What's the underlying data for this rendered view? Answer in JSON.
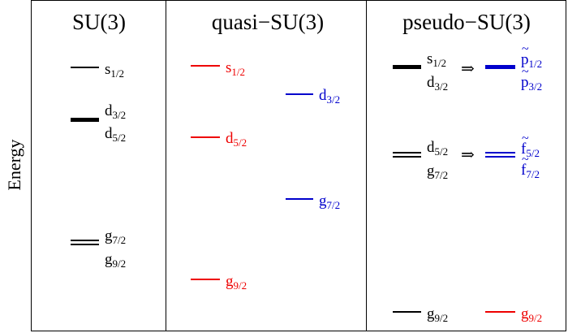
{
  "axis": {
    "ylabel": "Energy"
  },
  "panels": {
    "su3": {
      "title": "SU(3)",
      "s": {
        "base": "s",
        "sub": "1/2"
      },
      "d1": {
        "base": "d",
        "sub": "3/2"
      },
      "d2": {
        "base": "d",
        "sub": "5/2"
      },
      "g1": {
        "base": "g",
        "sub": "7/2"
      },
      "g2": {
        "base": "g",
        "sub": "9/2"
      }
    },
    "quasi": {
      "title": "quasi−SU(3)",
      "s": {
        "base": "s",
        "sub": "1/2"
      },
      "d3": {
        "base": "d",
        "sub": "3/2"
      },
      "d5": {
        "base": "d",
        "sub": "5/2"
      },
      "g7": {
        "base": "g",
        "sub": "7/2"
      },
      "g9": {
        "base": "g",
        "sub": "9/2"
      }
    },
    "pseudo": {
      "title": "pseudo−SU(3)",
      "s": {
        "base": "s",
        "sub": "1/2"
      },
      "d3": {
        "base": "d",
        "sub": "3/2"
      },
      "d5": {
        "base": "d",
        "sub": "5/2"
      },
      "g7": {
        "base": "g",
        "sub": "7/2"
      },
      "g9": {
        "base": "g",
        "sub": "9/2"
      },
      "arrow": "⇒",
      "p1": {
        "base": "p",
        "sub": "1/2",
        "accent": "~"
      },
      "p3": {
        "base": "p",
        "sub": "3/2",
        "accent": "~"
      },
      "f5": {
        "base": "f",
        "sub": "5/2",
        "accent": "~"
      },
      "f7": {
        "base": "f",
        "sub": "7/2",
        "accent": "~"
      },
      "g9r": {
        "base": "g",
        "sub": "9/2"
      }
    }
  },
  "colors": {
    "black": "#000000",
    "red": "#e00000",
    "blue": "#0000cc"
  }
}
